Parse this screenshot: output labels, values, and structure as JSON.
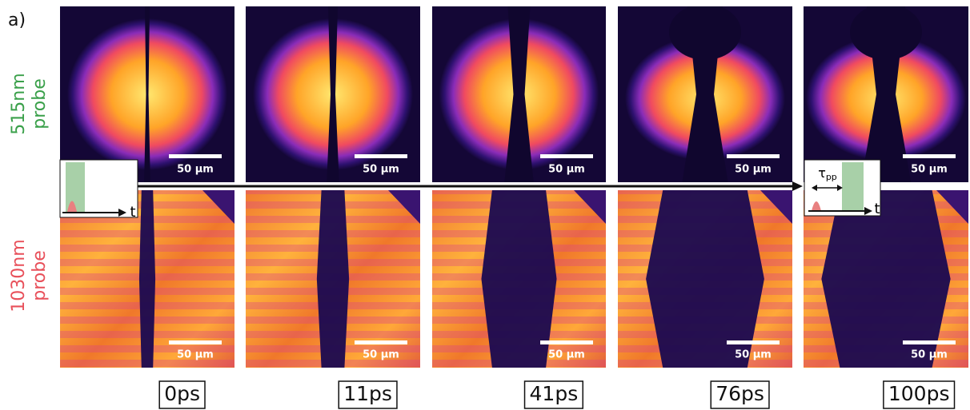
{
  "panel_label": "a)",
  "rows": [
    {
      "wavelength": "515nm",
      "name": "probe",
      "color": "#3aa04a"
    },
    {
      "wavelength": "1030nm",
      "name": "probe",
      "color": "#e8505a"
    }
  ],
  "scale_bar_label": "50 µm",
  "frames": [
    {
      "time": "0ps"
    },
    {
      "time": "11ps"
    },
    {
      "time": "41ps"
    },
    {
      "time": "76ps"
    },
    {
      "time": "100ps"
    }
  ],
  "inset": {
    "axis_label": "t",
    "delay_symbol": "τ",
    "delay_subscript": "pp"
  }
}
